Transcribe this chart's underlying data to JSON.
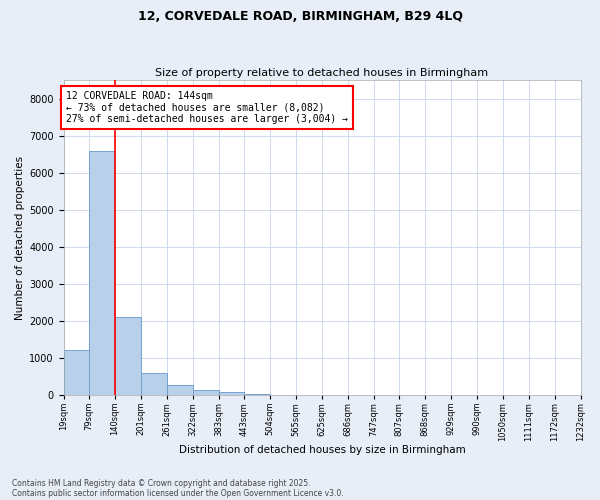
{
  "title1": "12, CORVEDALE ROAD, BIRMINGHAM, B29 4LQ",
  "title2": "Size of property relative to detached houses in Birmingham",
  "xlabel": "Distribution of detached houses by size in Birmingham",
  "ylabel": "Number of detached properties",
  "bin_edges": [
    19,
    79,
    140,
    201,
    261,
    322,
    383,
    443,
    504,
    565,
    625,
    686,
    747,
    807,
    868,
    929,
    990,
    1050,
    1111,
    1172,
    1232
  ],
  "bin_labels": [
    "19sqm",
    "79sqm",
    "140sqm",
    "201sqm",
    "261sqm",
    "322sqm",
    "383sqm",
    "443sqm",
    "504sqm",
    "565sqm",
    "625sqm",
    "686sqm",
    "747sqm",
    "807sqm",
    "868sqm",
    "929sqm",
    "990sqm",
    "1050sqm",
    "1111sqm",
    "1172sqm",
    "1232sqm"
  ],
  "bar_values": [
    1200,
    6600,
    2100,
    600,
    280,
    120,
    80,
    35,
    10,
    2,
    0,
    0,
    0,
    0,
    0,
    0,
    0,
    0,
    0,
    0
  ],
  "bar_color": "#b8d0ea",
  "bar_edge_color": "#6699cc",
  "vline_x": 140,
  "vline_color": "red",
  "annotation_text": "12 CORVEDALE ROAD: 144sqm\n← 73% of detached houses are smaller (8,082)\n27% of semi-detached houses are larger (3,004) →",
  "ylim": [
    0,
    8500
  ],
  "yticks": [
    0,
    1000,
    2000,
    3000,
    4000,
    5000,
    6000,
    7000,
    8000
  ],
  "footer1": "Contains HM Land Registry data © Crown copyright and database right 2025.",
  "footer2": "Contains public sector information licensed under the Open Government Licence v3.0.",
  "bg_color": "#e8eef8",
  "plot_bg_color": "#ffffff",
  "grid_color": "#c8d4e8"
}
